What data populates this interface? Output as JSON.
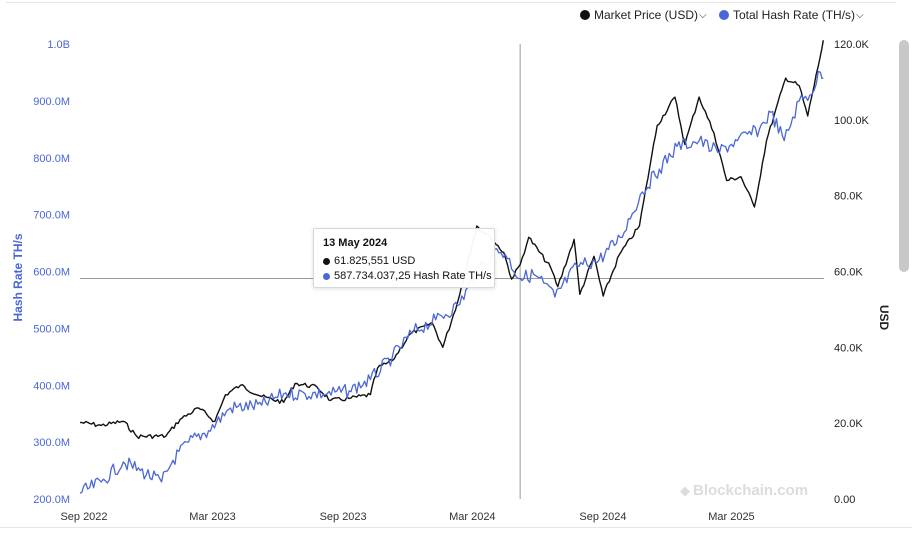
{
  "legend": {
    "items": [
      {
        "label": "Market Price (USD)",
        "color": "#111111"
      },
      {
        "label": "Total Hash Rate (TH/s)",
        "color": "#4a67d6"
      }
    ]
  },
  "watermark": "Blockchain.com",
  "tooltip": {
    "date": "13 May 2024",
    "price_text": "61.825,551 USD",
    "hash_text": "587.734.037,25 Hash Rate TH/s"
  },
  "chart_data": {
    "type": "line",
    "title": "",
    "xlabel": "",
    "x_ticks": [
      "Sep 2022",
      "Mar 2023",
      "Sep 2023",
      "Mar 2024",
      "Sep 2024",
      "Mar 2025"
    ],
    "x_range": [
      "2022-09-01",
      "2025-07-15"
    ],
    "left_axis": {
      "label": "Hash Rate TH/s",
      "ticks": [
        "200.0M",
        "300.0M",
        "400.0M",
        "500.0M",
        "600.0M",
        "700.0M",
        "800.0M",
        "900.0M",
        "1.0B"
      ],
      "range": [
        200000000,
        1000000000
      ],
      "color": "#4a67d6"
    },
    "right_axis": {
      "label": "USD",
      "ticks": [
        "0.00",
        "20.0K",
        "40.0K",
        "60.0K",
        "80.0K",
        "100.0K",
        "120.0K"
      ],
      "range": [
        0,
        120000
      ],
      "color": "#222222"
    },
    "grid": false,
    "legend_position": "top-right",
    "crosshair": {
      "date": "2024-05-13",
      "price_usd": 61825.551,
      "hash_rate_ths": 587734037.25
    },
    "series": [
      {
        "name": "Market Price (USD)",
        "axis": "right",
        "color": "#111111",
        "points": [
          [
            "2022-09-01",
            20200
          ],
          [
            "2022-10-01",
            19400
          ],
          [
            "2022-11-01",
            20500
          ],
          [
            "2022-11-20",
            16500
          ],
          [
            "2022-12-31",
            16600
          ],
          [
            "2023-01-20",
            21000
          ],
          [
            "2023-02-15",
            24000
          ],
          [
            "2023-03-10",
            20500
          ],
          [
            "2023-03-25",
            27500
          ],
          [
            "2023-04-15",
            30000
          ],
          [
            "2023-05-15",
            27000
          ],
          [
            "2023-06-15",
            25500
          ],
          [
            "2023-07-01",
            30500
          ],
          [
            "2023-08-01",
            29500
          ],
          [
            "2023-08-20",
            26000
          ],
          [
            "2023-09-15",
            26500
          ],
          [
            "2023-10-15",
            27500
          ],
          [
            "2023-10-25",
            34500
          ],
          [
            "2023-11-15",
            36500
          ],
          [
            "2023-12-10",
            43500
          ],
          [
            "2024-01-10",
            46500
          ],
          [
            "2024-01-25",
            40000
          ],
          [
            "2024-02-15",
            52000
          ],
          [
            "2024-03-13",
            72000
          ],
          [
            "2024-04-01",
            69000
          ],
          [
            "2024-04-20",
            65000
          ],
          [
            "2024-05-01",
            58000
          ],
          [
            "2024-05-13",
            61826
          ],
          [
            "2024-05-25",
            69000
          ],
          [
            "2024-06-25",
            61000
          ],
          [
            "2024-07-05",
            56000
          ],
          [
            "2024-07-28",
            68500
          ],
          [
            "2024-08-05",
            54000
          ],
          [
            "2024-08-25",
            64000
          ],
          [
            "2024-09-07",
            53500
          ],
          [
            "2024-09-30",
            64500
          ],
          [
            "2024-10-28",
            72000
          ],
          [
            "2024-11-12",
            88000
          ],
          [
            "2024-11-22",
            98500
          ],
          [
            "2024-12-17",
            106000
          ],
          [
            "2024-12-31",
            93500
          ],
          [
            "2025-01-20",
            106000
          ],
          [
            "2025-02-10",
            96500
          ],
          [
            "2025-02-28",
            84000
          ],
          [
            "2025-03-20",
            85000
          ],
          [
            "2025-04-08",
            77000
          ],
          [
            "2025-04-25",
            94500
          ],
          [
            "2025-05-22",
            111000
          ],
          [
            "2025-06-10",
            109000
          ],
          [
            "2025-06-22",
            101000
          ],
          [
            "2025-07-10",
            117000
          ],
          [
            "2025-07-14",
            121000
          ]
        ]
      },
      {
        "name": "Total Hash Rate (TH/s)",
        "axis": "left",
        "color": "#4a67d6",
        "points": [
          [
            "2022-09-01",
            210000000
          ],
          [
            "2022-10-01",
            230000000
          ],
          [
            "2022-11-01",
            265000000
          ],
          [
            "2022-11-25",
            250000000
          ],
          [
            "2022-12-25",
            230000000
          ],
          [
            "2023-01-10",
            268000000
          ],
          [
            "2023-02-01",
            300000000
          ],
          [
            "2023-03-01",
            320000000
          ],
          [
            "2023-04-01",
            360000000
          ],
          [
            "2023-05-15",
            365000000
          ],
          [
            "2023-06-15",
            385000000
          ],
          [
            "2023-07-15",
            385000000
          ],
          [
            "2023-08-15",
            385000000
          ],
          [
            "2023-09-15",
            390000000
          ],
          [
            "2023-10-15",
            410000000
          ],
          [
            "2023-11-15",
            450000000
          ],
          [
            "2023-12-15",
            495000000
          ],
          [
            "2024-01-15",
            515000000
          ],
          [
            "2024-02-15",
            540000000
          ],
          [
            "2024-03-15",
            600000000
          ],
          [
            "2024-04-10",
            640000000
          ],
          [
            "2024-04-22",
            630000000
          ],
          [
            "2024-05-13",
            587734037
          ],
          [
            "2024-06-01",
            595000000
          ],
          [
            "2024-06-15",
            580000000
          ],
          [
            "2024-07-01",
            555000000
          ],
          [
            "2024-08-01",
            610000000
          ],
          [
            "2024-09-01",
            620000000
          ],
          [
            "2024-10-01",
            660000000
          ],
          [
            "2024-11-01",
            740000000
          ],
          [
            "2024-11-25",
            780000000
          ],
          [
            "2024-12-20",
            820000000
          ],
          [
            "2025-01-20",
            830000000
          ],
          [
            "2025-02-15",
            810000000
          ],
          [
            "2025-03-15",
            830000000
          ],
          [
            "2025-04-15",
            850000000
          ],
          [
            "2025-05-01",
            880000000
          ],
          [
            "2025-05-20",
            830000000
          ],
          [
            "2025-06-10",
            900000000
          ],
          [
            "2025-06-25",
            910000000
          ],
          [
            "2025-07-10",
            950000000
          ],
          [
            "2025-07-14",
            940000000
          ]
        ]
      }
    ]
  }
}
